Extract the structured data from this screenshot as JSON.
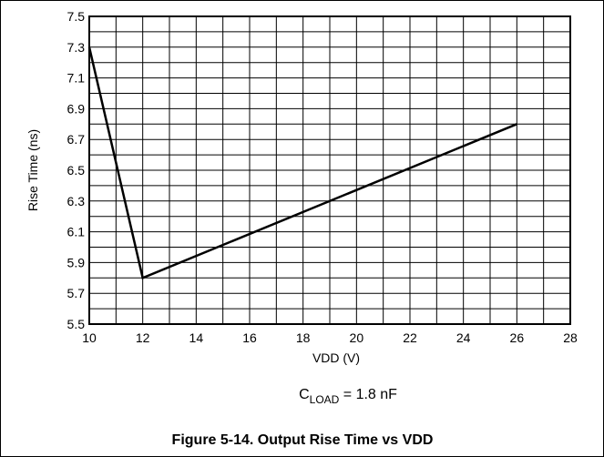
{
  "chart_data": {
    "type": "line",
    "title": "",
    "xlabel": "VDD (V)",
    "ylabel": "Rise Time (ns)",
    "xlim": [
      10,
      28
    ],
    "ylim": [
      5.5,
      7.5
    ],
    "x_ticks": [
      10,
      12,
      14,
      16,
      18,
      20,
      22,
      24,
      26,
      28
    ],
    "y_ticks": [
      5.5,
      5.7,
      5.9,
      6.1,
      6.3,
      6.5,
      6.7,
      6.9,
      7.1,
      7.3,
      7.5
    ],
    "x_tick_labels": [
      "10",
      "12",
      "14",
      "16",
      "18",
      "20",
      "22",
      "24",
      "26",
      "28"
    ],
    "y_tick_labels": [
      "5.5",
      "5.7",
      "5.9",
      "6.1",
      "6.3",
      "6.5",
      "6.7",
      "6.9",
      "7.1",
      "7.3",
      "7.5"
    ],
    "grid": true,
    "series": [
      {
        "x": [
          10,
          12,
          26
        ],
        "y": [
          7.3,
          5.8,
          6.8
        ]
      }
    ]
  },
  "annotation": {
    "prefix": "C",
    "subscript": "LOAD",
    "suffix": " = 1.8 nF"
  },
  "caption": "Figure 5-14. Output Rise Time vs VDD",
  "colors": {
    "line": "#000000",
    "grid": "#000000",
    "background": "#ffffff"
  }
}
